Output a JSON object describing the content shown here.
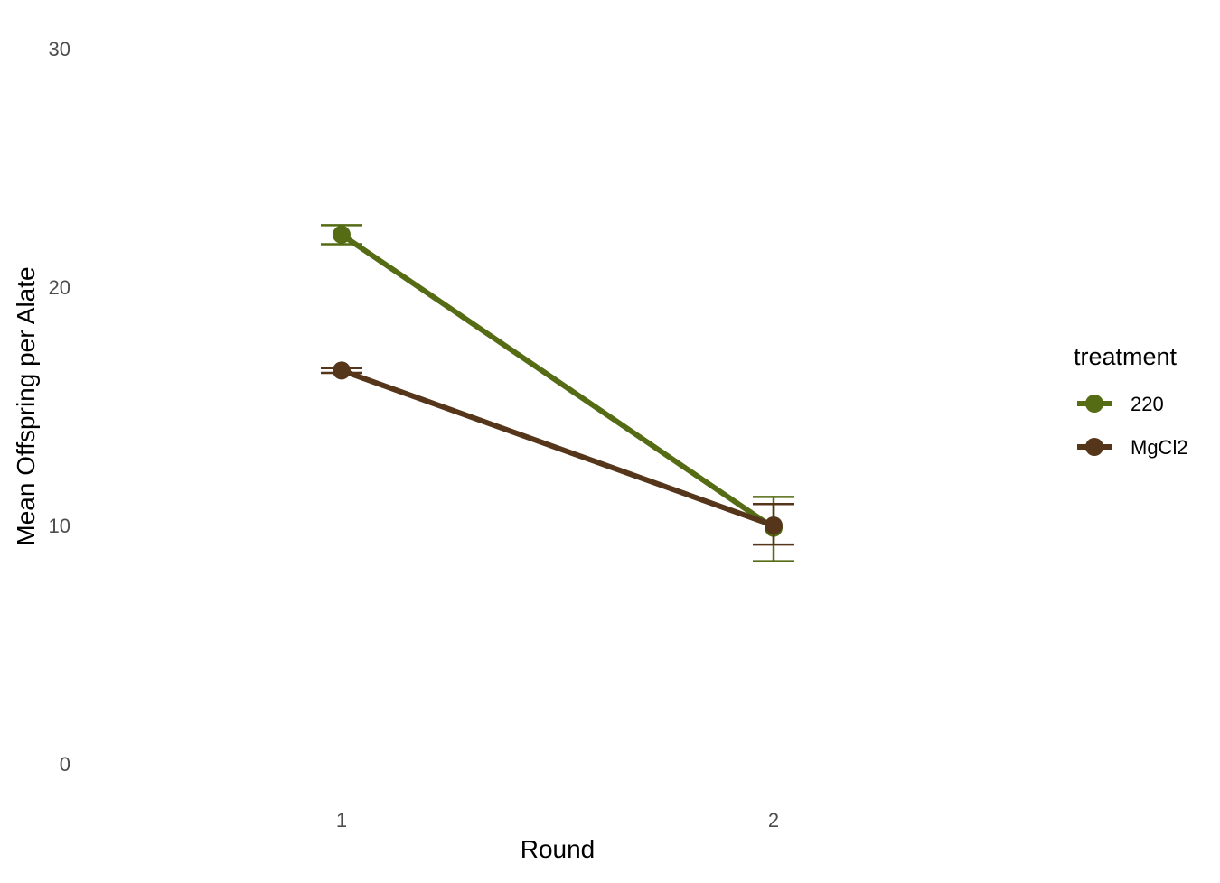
{
  "chart_data": {
    "type": "line",
    "title": "",
    "xlabel": "Round",
    "ylabel": "Mean Offspring per Alate",
    "x": [
      "1",
      "2"
    ],
    "ylim": [
      0,
      30
    ],
    "y_ticks": [
      "0",
      "10",
      "20",
      "30"
    ],
    "grid": false,
    "legend": {
      "title": "treatment",
      "position": "right"
    },
    "series": [
      {
        "name": "220",
        "color": "#556b14",
        "values": [
          22.2,
          9.9
        ],
        "error": [
          [
            21.8,
            22.6
          ],
          [
            8.5,
            11.2
          ]
        ]
      },
      {
        "name": "MgCl2",
        "color": "#55361a",
        "values": [
          16.5,
          10.0
        ],
        "error": [
          [
            16.4,
            16.6
          ],
          [
            9.2,
            10.9
          ]
        ]
      }
    ]
  }
}
